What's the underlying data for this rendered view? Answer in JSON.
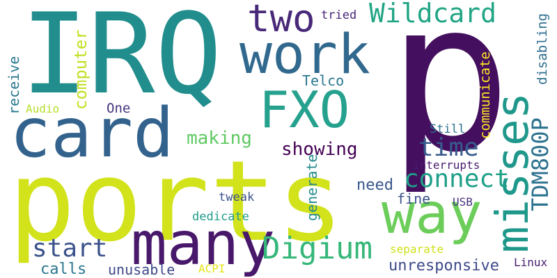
{
  "words": {
    "ports": {
      "text": "ports",
      "color": "#d2e21b"
    },
    "p": {
      "text": "p",
      "color": "#440f5e"
    },
    "irq": {
      "text": "IRQ",
      "color": "#228d8d"
    },
    "card": {
      "text": "card",
      "color": "#33638d"
    },
    "many": {
      "text": "many",
      "color": "#48186a"
    },
    "misses": {
      "text": "misses",
      "color": "#1f988b"
    },
    "way": {
      "text": "way",
      "color": "#6ccd5a"
    },
    "work": {
      "text": "work",
      "color": "#31688e"
    },
    "fxo": {
      "text": "FXO",
      "color": "#25a18e"
    },
    "two": {
      "text": "two",
      "color": "#482878"
    },
    "wildcard": {
      "text": "Wildcard",
      "color": "#21a585"
    },
    "digium": {
      "text": "Digium",
      "color": "#35b779"
    },
    "tdm800p": {
      "text": "TDM800P",
      "color": "#2c728e"
    },
    "connect": {
      "text": "connect",
      "color": "#1fa088"
    },
    "time": {
      "text": "time",
      "color": "#375a8c"
    },
    "start": {
      "text": "start",
      "color": "#3b528b"
    },
    "showing": {
      "text": "showing",
      "color": "#440154"
    },
    "making": {
      "text": "making",
      "color": "#5ec962"
    },
    "computer": {
      "text": "computer",
      "color": "#c2df23"
    },
    "receive": {
      "text": "receive",
      "color": "#2a788e"
    },
    "unresponsive": {
      "text": "unresponsive",
      "color": "#3e4a89"
    },
    "calls": {
      "text": "calls",
      "color": "#2a768e"
    },
    "unusable": {
      "text": "unusable",
      "color": "#3e4989"
    },
    "generate": {
      "text": "generate",
      "color": "#238a8d"
    },
    "need": {
      "text": "need",
      "color": "#39568c"
    },
    "fine": {
      "text": "fine",
      "color": "#3b528b"
    },
    "communicate": {
      "text": "communicate",
      "color": "#fde725"
    },
    "disabling": {
      "text": "disabling",
      "color": "#2e6e8e"
    },
    "telco": {
      "text": "Telco",
      "color": "#2a788e"
    },
    "one": {
      "text": "One",
      "color": "#46337e"
    },
    "audio": {
      "text": "Audio",
      "color": "#b5de2b"
    },
    "tried": {
      "text": "tried",
      "color": "#482677"
    },
    "still": {
      "text": "Still",
      "color": "#2d718e"
    },
    "interrupts": {
      "text": "interrupts",
      "color": "#481c6e"
    },
    "tweak": {
      "text": "tweak",
      "color": "#3b528b"
    },
    "dedicate": {
      "text": "dedicate",
      "color": "#1e9c89"
    },
    "usb": {
      "text": "USB",
      "color": "#46327e"
    },
    "separate": {
      "text": "separate",
      "color": "#d0e11c"
    },
    "acpi": {
      "text": "ACPI",
      "color": "#e5e419"
    },
    "linux": {
      "text": "Linux",
      "color": "#482071"
    }
  }
}
